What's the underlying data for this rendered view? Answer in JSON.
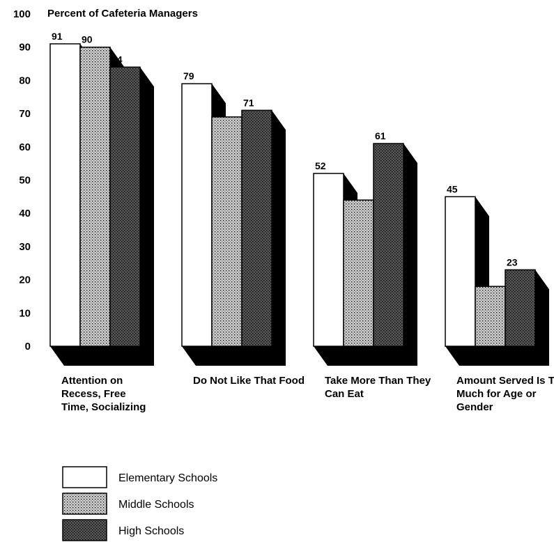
{
  "chart_data": {
    "type": "bar",
    "title": "Percent of Cafeteria Managers",
    "categories": [
      "Attention on Recess, Free Time, Socializing",
      "Do Not Like That Food",
      "Take More Than They Can Eat",
      "Amount Served Is Too Much for Age or Gender"
    ],
    "series": [
      {
        "name": "Elementary Schools",
        "color": "#ffffff",
        "values": [
          91,
          79,
          52,
          45
        ]
      },
      {
        "name": "Middle Schools",
        "color": "#cccccc",
        "values": [
          90,
          69,
          44,
          18
        ]
      },
      {
        "name": "High Schools",
        "color": "#555555",
        "values": [
          84,
          71,
          61,
          23
        ]
      }
    ],
    "ylim": [
      0,
      100
    ],
    "yticks": [
      0,
      10,
      20,
      30,
      40,
      50,
      60,
      70,
      80,
      90,
      100
    ],
    "grid": false
  }
}
